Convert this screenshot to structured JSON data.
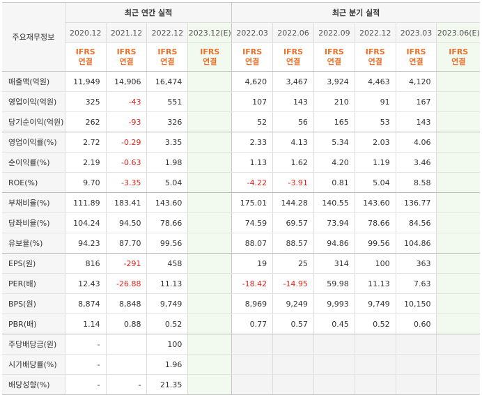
{
  "header": {
    "label_col": "주요재무정보",
    "annual_group": "최근 연간 실적",
    "quarterly_group": "최근 분기 실적",
    "annual_periods": [
      "2020.12",
      "2021.12",
      "2022.12",
      "2023.12(E)"
    ],
    "quarterly_periods": [
      "2022.03",
      "2022.06",
      "2022.09",
      "2022.12",
      "2023.03",
      "2023.06(E)"
    ],
    "basis_line1": "IFRS",
    "basis_line2": "연결"
  },
  "rows": [
    {
      "label": "매출액(억원)",
      "annual": [
        "11,949",
        "14,906",
        "16,474",
        ""
      ],
      "quarterly": [
        "4,620",
        "3,467",
        "3,924",
        "4,463",
        "4,120",
        ""
      ]
    },
    {
      "label": "영업이익(억원)",
      "annual": [
        "325",
        "-43",
        "551",
        ""
      ],
      "quarterly": [
        "107",
        "143",
        "210",
        "91",
        "167",
        ""
      ]
    },
    {
      "label": "당기순이익(억원)",
      "annual": [
        "262",
        "-93",
        "326",
        ""
      ],
      "quarterly": [
        "52",
        "56",
        "165",
        "53",
        "143",
        ""
      ]
    },
    {
      "label": "영업이익률(%)",
      "annual": [
        "2.72",
        "-0.29",
        "3.35",
        ""
      ],
      "quarterly": [
        "2.33",
        "4.13",
        "5.34",
        "2.03",
        "4.06",
        ""
      ]
    },
    {
      "label": "순이익률(%)",
      "annual": [
        "2.19",
        "-0.63",
        "1.98",
        ""
      ],
      "quarterly": [
        "1.13",
        "1.62",
        "4.20",
        "1.19",
        "3.46",
        ""
      ]
    },
    {
      "label": "ROE(%)",
      "annual": [
        "9.70",
        "-3.35",
        "5.04",
        ""
      ],
      "quarterly": [
        "-4.22",
        "-3.91",
        "0.81",
        "5.04",
        "8.58",
        ""
      ]
    },
    {
      "label": "부채비율(%)",
      "annual": [
        "111.89",
        "183.41",
        "143.60",
        ""
      ],
      "quarterly": [
        "175.01",
        "144.28",
        "140.55",
        "143.60",
        "136.77",
        ""
      ]
    },
    {
      "label": "당좌비율(%)",
      "annual": [
        "104.24",
        "94.50",
        "78.66",
        ""
      ],
      "quarterly": [
        "74.59",
        "69.57",
        "73.94",
        "78.66",
        "84.56",
        ""
      ]
    },
    {
      "label": "유보율(%)",
      "annual": [
        "94.23",
        "87.70",
        "99.56",
        ""
      ],
      "quarterly": [
        "88.07",
        "88.57",
        "94.86",
        "99.56",
        "104.86",
        ""
      ]
    },
    {
      "label": "EPS(원)",
      "annual": [
        "816",
        "-291",
        "458",
        ""
      ],
      "quarterly": [
        "19",
        "25",
        "314",
        "100",
        "363",
        ""
      ]
    },
    {
      "label": "PER(배)",
      "annual": [
        "12.43",
        "-26.88",
        "11.13",
        ""
      ],
      "quarterly": [
        "-18.42",
        "-14.95",
        "59.98",
        "11.13",
        "7.63",
        ""
      ]
    },
    {
      "label": "BPS(원)",
      "annual": [
        "8,874",
        "8,848",
        "9,749",
        ""
      ],
      "quarterly": [
        "8,969",
        "9,249",
        "9,993",
        "9,749",
        "10,150",
        ""
      ]
    },
    {
      "label": "PBR(배)",
      "annual": [
        "1.14",
        "0.88",
        "0.52",
        ""
      ],
      "quarterly": [
        "0.77",
        "0.57",
        "0.45",
        "0.52",
        "0.60",
        ""
      ]
    },
    {
      "label": "주당배당금(원)",
      "annual": [
        "-",
        "",
        "100",
        ""
      ],
      "quarterly": [
        "",
        "",
        "",
        "",
        "",
        ""
      ]
    },
    {
      "label": "시가배당률(%)",
      "annual": [
        "-",
        "",
        "1.96",
        ""
      ],
      "quarterly": [
        "",
        "",
        "",
        "",
        "",
        ""
      ]
    },
    {
      "label": "배당성향(%)",
      "annual": [
        "-",
        "-",
        "21.35",
        ""
      ],
      "quarterly": [
        "",
        "",
        "",
        "",
        "",
        ""
      ]
    }
  ],
  "colors": {
    "negative": "#e0261c",
    "basis": "#e8702a",
    "estimate_bg": "#f2f9ee"
  }
}
